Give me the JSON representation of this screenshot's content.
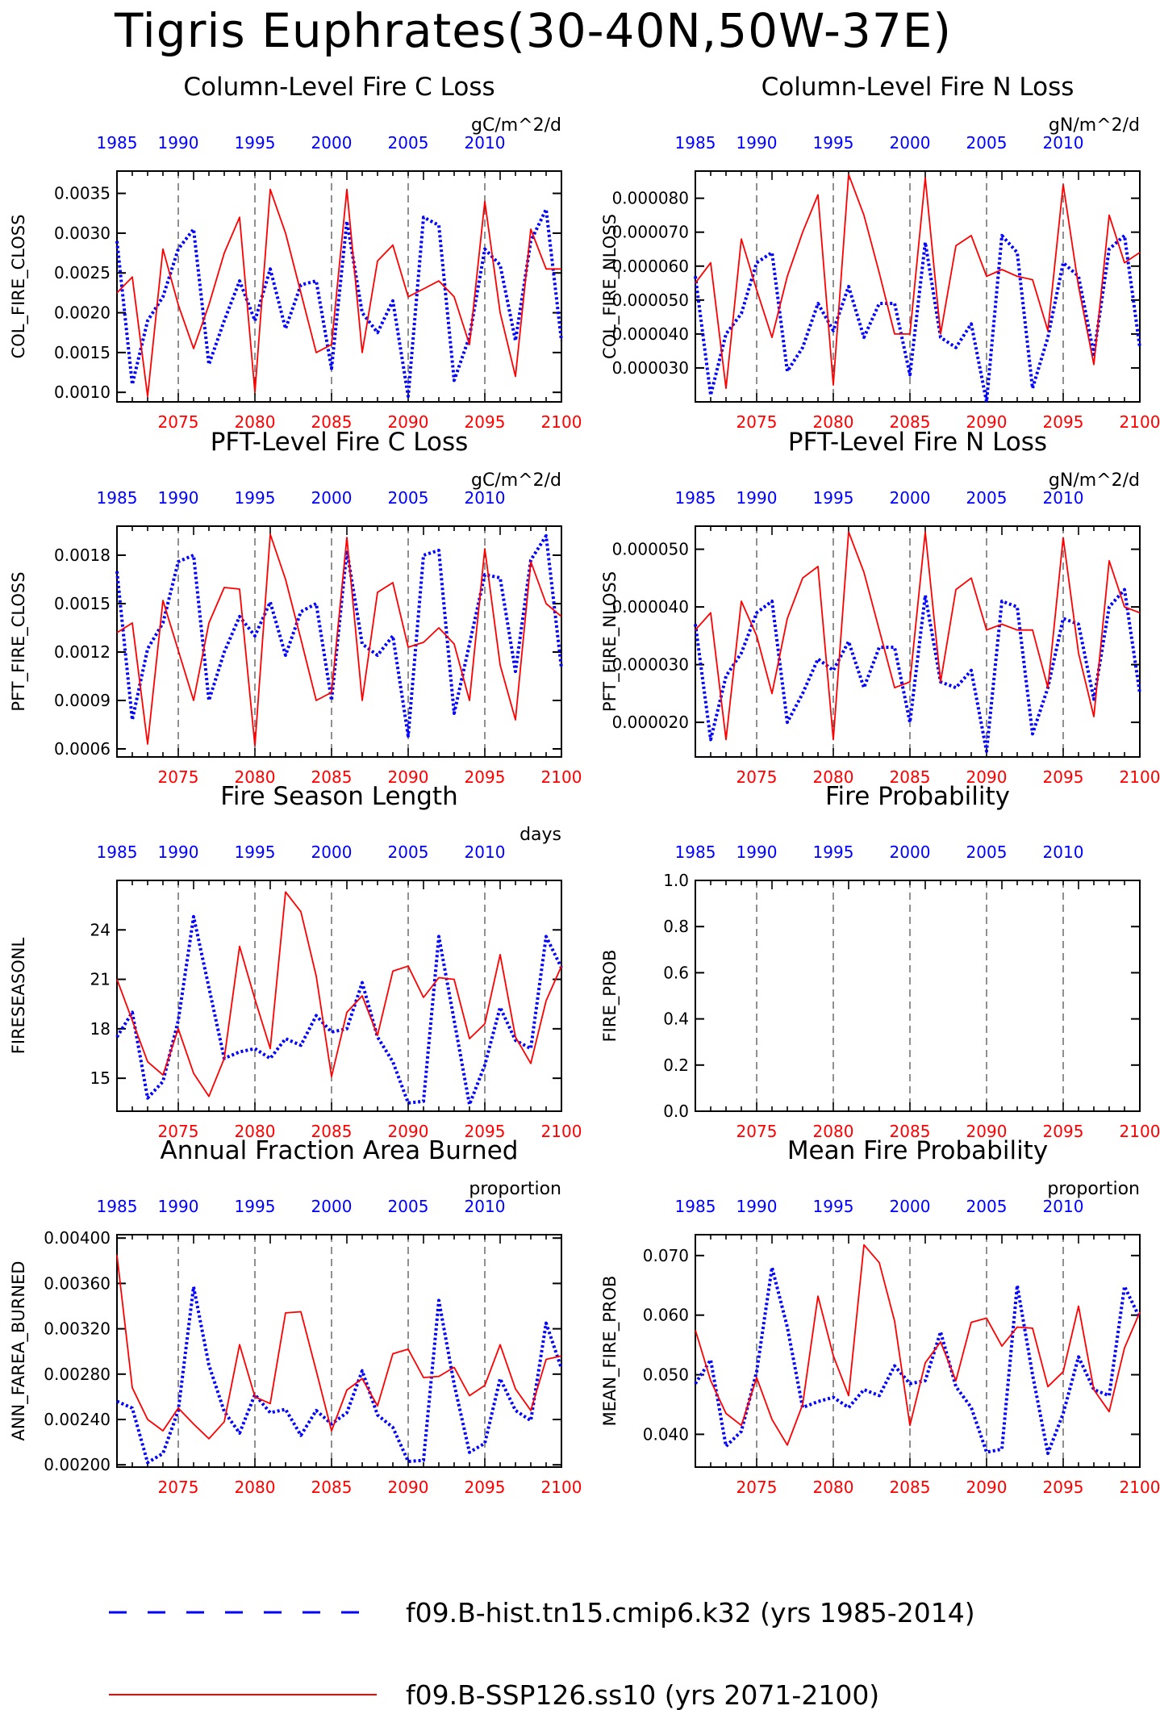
{
  "title": "Tigris Euphrates(30-40N,50W-37E)",
  "colors": {
    "hist": "#0000ff",
    "future": "#ff0000",
    "axis": "#000000"
  },
  "legend": [
    {
      "label": "f09.B-hist.tn15.cmip6.k32 (yrs 1985-2014)",
      "color": "#0000ff",
      "style": "dashed"
    },
    {
      "label": "f09.B-SSP126.ss10 (yrs 2071-2100)",
      "color": "#ff0000",
      "style": "solid"
    }
  ],
  "chart_data": [
    {
      "type": "line",
      "title": "Column-Level Fire C Loss",
      "units": "gC/m^2/d",
      "ylabel": "COL_FIRE_CLOSS",
      "ylim": [
        0.00088,
        0.00378
      ],
      "yticks": [
        0.001,
        0.0015,
        0.002,
        0.0025,
        0.003,
        0.0035
      ],
      "ytick_labels": [
        "0.0010",
        "0.0015",
        "0.0020",
        "0.0025",
        "0.0030",
        "0.0035"
      ],
      "x_top": [
        1985,
        1990,
        1995,
        2000,
        2005,
        2010
      ],
      "x_bottom": [
        2075,
        2080,
        2085,
        2090,
        2095,
        2100
      ],
      "series": [
        {
          "name": "f09.B-hist.tn15.cmip6.k32",
          "years": "1985-2014",
          "values": [
            0.0029,
            0.0011,
            0.0019,
            0.0022,
            0.0028,
            0.00305,
            0.00135,
            0.0019,
            0.0024,
            0.0019,
            0.00255,
            0.0018,
            0.00235,
            0.0024,
            0.0013,
            0.00315,
            0.002,
            0.00175,
            0.00215,
            0.00095,
            0.0032,
            0.0031,
            0.00115,
            0.0017,
            0.0028,
            0.0026,
            0.00165,
            0.0029,
            0.0033,
            0.00165
          ]
        },
        {
          "name": "f09.B-SSP126.ss10",
          "years": "2071-2100",
          "values": [
            0.00225,
            0.00245,
            0.00095,
            0.0028,
            0.0021,
            0.00155,
            0.0021,
            0.00275,
            0.0032,
            0.001,
            0.00355,
            0.003,
            0.00225,
            0.0015,
            0.0016,
            0.00355,
            0.0015,
            0.00265,
            0.00285,
            0.0022,
            0.0023,
            0.0024,
            0.0022,
            0.0016,
            0.0034,
            0.002,
            0.0012,
            0.00305,
            0.00255,
            0.00255
          ]
        }
      ]
    },
    {
      "type": "line",
      "title": "Column-Level Fire N Loss",
      "units": "gN/m^2/d",
      "ylabel": "COL_FIRE_NLOSS",
      "ylim": [
        2e-05,
        8.8e-05
      ],
      "yticks": [
        3e-05,
        4e-05,
        5e-05,
        6e-05,
        7e-05,
        8e-05
      ],
      "ytick_labels": [
        "0.000030",
        "0.000040",
        "0.000050",
        "0.000060",
        "0.000070",
        "0.000080"
      ],
      "x_top": [
        1985,
        1990,
        1995,
        2000,
        2005,
        2010
      ],
      "x_bottom": [
        2075,
        2080,
        2085,
        2090,
        2095,
        2100
      ],
      "series": [
        {
          "name": "f09.B-hist.tn15.cmip6.k32",
          "years": "1985-2014",
          "values": [
            5.7e-05,
            2.2e-05,
            4e-05,
            4.6e-05,
            6.1e-05,
            6.4e-05,
            2.9e-05,
            3.6e-05,
            4.9e-05,
            4.1e-05,
            5.4e-05,
            3.9e-05,
            4.9e-05,
            4.9e-05,
            2.8e-05,
            6.7e-05,
            3.9e-05,
            3.6e-05,
            4.3e-05,
            2e-05,
            6.9e-05,
            6.4e-05,
            2.4e-05,
            3.9e-05,
            6.1e-05,
            5.7e-05,
            3.4e-05,
            6.5e-05,
            6.9e-05,
            3.6e-05
          ]
        },
        {
          "name": "f09.B-SSP126.ss10",
          "years": "2071-2100",
          "values": [
            5.5e-05,
            6.1e-05,
            2.4e-05,
            6.8e-05,
            5.3e-05,
            3.9e-05,
            5.7e-05,
            7e-05,
            8.1e-05,
            2.5e-05,
            8.7e-05,
            7.5e-05,
            5.8e-05,
            4e-05,
            4e-05,
            8.6e-05,
            4e-05,
            6.6e-05,
            6.9e-05,
            5.7e-05,
            5.9e-05,
            5.7e-05,
            5.6e-05,
            4.1e-05,
            8.4e-05,
            5.4e-05,
            3.1e-05,
            7.5e-05,
            6.1e-05,
            6.4e-05
          ]
        }
      ]
    },
    {
      "type": "line",
      "title": "PFT-Level Fire C Loss",
      "units": "gC/m^2/d",
      "ylabel": "PFT_FIRE_CLOSS",
      "ylim": [
        0.00055,
        0.00198
      ],
      "yticks": [
        0.0006,
        0.0009,
        0.0012,
        0.0015,
        0.0018
      ],
      "ytick_labels": [
        "0.0006",
        "0.0009",
        "0.0012",
        "0.0015",
        "0.0018"
      ],
      "x_top": [
        1985,
        1990,
        1995,
        2000,
        2005,
        2010
      ],
      "x_bottom": [
        2075,
        2080,
        2085,
        2090,
        2095,
        2100
      ],
      "series": [
        {
          "name": "f09.B-hist.tn15.cmip6.k32",
          "years": "1985-2014",
          "values": [
            0.0017,
            0.00078,
            0.00122,
            0.00138,
            0.00176,
            0.0018,
            0.0009,
            0.0012,
            0.00142,
            0.0013,
            0.00151,
            0.00118,
            0.00145,
            0.0015,
            0.0009,
            0.00183,
            0.00125,
            0.00118,
            0.0013,
            0.00068,
            0.0018,
            0.00183,
            0.00082,
            0.00125,
            0.00168,
            0.00166,
            0.00108,
            0.00177,
            0.00192,
            0.0011
          ]
        },
        {
          "name": "f09.B-SSP126.ss10",
          "years": "2071-2100",
          "values": [
            0.00132,
            0.00138,
            0.00063,
            0.00152,
            0.00121,
            0.0009,
            0.00138,
            0.0016,
            0.00159,
            0.00062,
            0.00193,
            0.00165,
            0.00128,
            0.0009,
            0.00095,
            0.00191,
            0.0009,
            0.00157,
            0.00163,
            0.00123,
            0.00126,
            0.00135,
            0.00125,
            0.0009,
            0.00184,
            0.00112,
            0.00078,
            0.00176,
            0.0015,
            0.00142
          ]
        }
      ]
    },
    {
      "type": "line",
      "title": "PFT-Level Fire N Loss",
      "units": "gN/m^2/d",
      "ylabel": "PFT_FIRE_NLOSS",
      "ylim": [
        1.4e-05,
        5.4e-05
      ],
      "yticks": [
        2e-05,
        3e-05,
        4e-05,
        5e-05
      ],
      "ytick_labels": [
        "0.000020",
        "0.000030",
        "0.000040",
        "0.000050"
      ],
      "x_top": [
        1985,
        1990,
        1995,
        2000,
        2005,
        2010
      ],
      "x_bottom": [
        2075,
        2080,
        2085,
        2090,
        2095,
        2100
      ],
      "series": [
        {
          "name": "f09.B-hist.tn15.cmip6.k32",
          "years": "1985-2014",
          "values": [
            3.7e-05,
            1.7e-05,
            2.8e-05,
            3.2e-05,
            3.9e-05,
            4.1e-05,
            2e-05,
            2.5e-05,
            3.1e-05,
            2.9e-05,
            3.4e-05,
            2.6e-05,
            3.3e-05,
            3.3e-05,
            2e-05,
            4.2e-05,
            2.7e-05,
            2.6e-05,
            2.9e-05,
            1.5e-05,
            4.1e-05,
            4e-05,
            1.8e-05,
            2.6e-05,
            3.8e-05,
            3.7e-05,
            2.4e-05,
            4e-05,
            4.3e-05,
            2.5e-05
          ]
        },
        {
          "name": "f09.B-SSP126.ss10",
          "years": "2071-2100",
          "values": [
            3.6e-05,
            3.9e-05,
            1.7e-05,
            4.1e-05,
            3.5e-05,
            2.5e-05,
            3.8e-05,
            4.5e-05,
            4.7e-05,
            1.7e-05,
            5.3e-05,
            4.6e-05,
            3.6e-05,
            2.6e-05,
            2.7e-05,
            5.3e-05,
            2.7e-05,
            4.3e-05,
            4.5e-05,
            3.6e-05,
            3.7e-05,
            3.6e-05,
            3.6e-05,
            2.6e-05,
            5.2e-05,
            3.2e-05,
            2.1e-05,
            4.8e-05,
            4e-05,
            3.9e-05
          ]
        }
      ]
    },
    {
      "type": "line",
      "title": "Fire Season Length",
      "units": "days",
      "ylabel": "FIRESEASONL",
      "ylim": [
        13,
        27
      ],
      "yticks": [
        15,
        18,
        21,
        24
      ],
      "ytick_labels": [
        "15",
        "18",
        "21",
        "24"
      ],
      "x_top": [
        1985,
        1990,
        1995,
        2000,
        2005,
        2010
      ],
      "x_bottom": [
        2075,
        2080,
        2085,
        2090,
        2095,
        2100
      ],
      "series": [
        {
          "name": "f09.B-hist.tn15.cmip6.k32",
          "years": "1985-2014",
          "values": [
            17.5,
            19.0,
            13.8,
            14.8,
            18.5,
            24.8,
            20.5,
            16.2,
            16.6,
            16.8,
            16.2,
            17.4,
            17.0,
            18.8,
            17.8,
            18.0,
            20.8,
            17.5,
            16.0,
            13.5,
            13.6,
            23.6,
            18.5,
            13.4,
            15.8,
            19.3,
            17.3,
            16.8,
            23.6,
            21.7
          ]
        },
        {
          "name": "f09.B-SSP126.ss10",
          "years": "2071-2100",
          "values": [
            21.0,
            18.5,
            16.0,
            15.2,
            18.0,
            15.3,
            13.9,
            16.2,
            23.0,
            19.8,
            16.8,
            26.3,
            25.1,
            21.2,
            15.1,
            19.0,
            20.0,
            17.6,
            21.5,
            21.8,
            19.9,
            21.1,
            21.0,
            17.4,
            18.3,
            22.5,
            17.5,
            15.9,
            19.7,
            21.8
          ]
        }
      ]
    },
    {
      "type": "line",
      "title": "Fire Probability",
      "units": "",
      "ylabel": "FIRE_PROB",
      "ylim": [
        0,
        1
      ],
      "yticks": [
        0,
        0.2,
        0.4,
        0.6,
        0.8,
        1.0
      ],
      "ytick_labels": [
        "0.0",
        "0.2",
        "0.4",
        "0.6",
        "0.8",
        "1.0"
      ],
      "x_top": [
        1985,
        1990,
        1995,
        2000,
        2005,
        2010
      ],
      "x_bottom": [
        2075,
        2080,
        2085,
        2090,
        2095,
        2100
      ],
      "series": []
    },
    {
      "type": "line",
      "title": "Annual Fraction Area Burned",
      "units": "proportion",
      "ylabel": "ANN_FAREA_BURNED",
      "ylim": [
        0.00198,
        0.00403
      ],
      "yticks": [
        0.002,
        0.0024,
        0.0028,
        0.0032,
        0.0036,
        0.004
      ],
      "ytick_labels": [
        "0.00200",
        "0.00240",
        "0.00280",
        "0.00320",
        "0.00360",
        "0.00400"
      ],
      "x_top": [
        1985,
        1990,
        1995,
        2000,
        2005,
        2010
      ],
      "x_bottom": [
        2075,
        2080,
        2085,
        2090,
        2095,
        2100
      ],
      "series": [
        {
          "name": "f09.B-hist.tn15.cmip6.k32",
          "years": "1985-2014",
          "values": [
            0.00256,
            0.0025,
            0.00202,
            0.0021,
            0.00248,
            0.00357,
            0.00288,
            0.00247,
            0.00228,
            0.00262,
            0.00246,
            0.00249,
            0.00226,
            0.00248,
            0.00236,
            0.00246,
            0.00283,
            0.00244,
            0.00233,
            0.00203,
            0.00204,
            0.00345,
            0.00271,
            0.00211,
            0.00219,
            0.00276,
            0.00248,
            0.00239,
            0.00325,
            0.00285
          ]
        },
        {
          "name": "f09.B-SSP126.ss10",
          "years": "2071-2100",
          "values": [
            0.00385,
            0.00268,
            0.0024,
            0.0023,
            0.0025,
            0.00236,
            0.00223,
            0.00238,
            0.00306,
            0.0026,
            0.00254,
            0.00334,
            0.00335,
            0.00283,
            0.0023,
            0.00266,
            0.00276,
            0.00252,
            0.00298,
            0.00302,
            0.00277,
            0.00278,
            0.00286,
            0.00261,
            0.0027,
            0.00306,
            0.00267,
            0.00248,
            0.00293,
            0.00296
          ]
        }
      ]
    },
    {
      "type": "line",
      "title": "Mean Fire Probability",
      "units": "proportion",
      "ylabel": "MEAN_FIRE_PROB",
      "ylim": [
        0.0345,
        0.0735
      ],
      "yticks": [
        0.04,
        0.05,
        0.06,
        0.07
      ],
      "ytick_labels": [
        "0.040",
        "0.050",
        "0.060",
        "0.070"
      ],
      "x_top": [
        1985,
        1990,
        1995,
        2000,
        2005,
        2010
      ],
      "x_bottom": [
        2075,
        2080,
        2085,
        2090,
        2095,
        2100
      ],
      "series": [
        {
          "name": "f09.B-hist.tn15.cmip6.k32",
          "years": "1985-2014",
          "values": [
            0.0485,
            0.0525,
            0.038,
            0.0405,
            0.0505,
            0.068,
            0.058,
            0.0445,
            0.0455,
            0.0462,
            0.0445,
            0.0475,
            0.0465,
            0.0515,
            0.0485,
            0.049,
            0.0572,
            0.048,
            0.0445,
            0.037,
            0.0375,
            0.065,
            0.05,
            0.0368,
            0.0435,
            0.053,
            0.0475,
            0.0465,
            0.0648,
            0.0595
          ]
        },
        {
          "name": "f09.B-SSP126.ss10",
          "years": "2071-2100",
          "values": [
            0.0575,
            0.049,
            0.0435,
            0.0415,
            0.0495,
            0.0425,
            0.0382,
            0.045,
            0.0632,
            0.0532,
            0.0465,
            0.0718,
            0.0688,
            0.059,
            0.0415,
            0.052,
            0.0555,
            0.049,
            0.0588,
            0.0595,
            0.0548,
            0.058,
            0.0578,
            0.048,
            0.0505,
            0.0615,
            0.0475,
            0.0438,
            0.0545,
            0.0605
          ]
        }
      ]
    }
  ]
}
